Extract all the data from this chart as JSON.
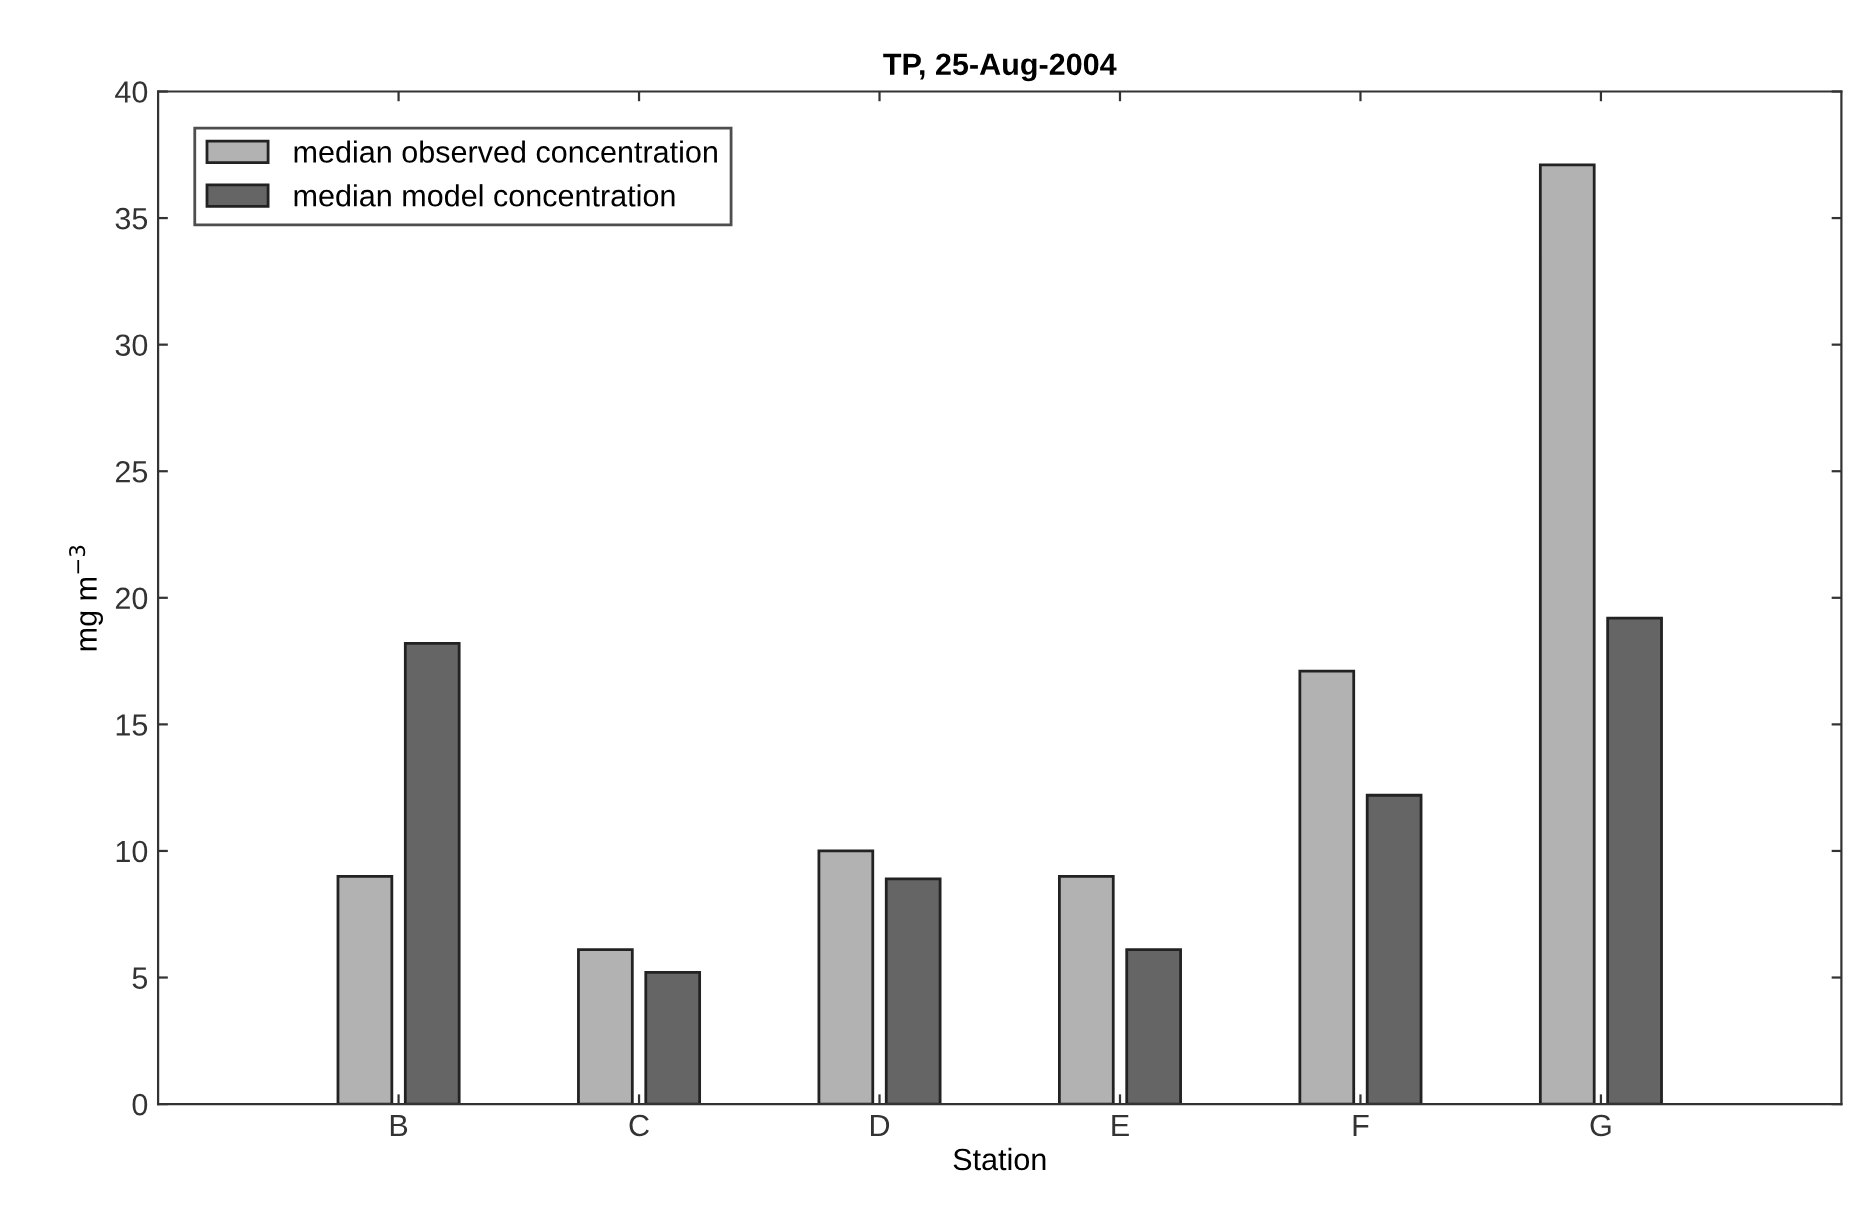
{
  "chart_data": {
    "type": "bar",
    "title": "TP, 25-Aug-2004",
    "xlabel": "Station",
    "ylabel": "mg m$^{−3}$",
    "categories": [
      "B",
      "C",
      "D",
      "E",
      "F",
      "G"
    ],
    "series": [
      {
        "name": "median observed concentration",
        "color": "#b2b2b2",
        "values": [
          9,
          6.1,
          10,
          9,
          17.1,
          37.1
        ]
      },
      {
        "name": "median model concentration",
        "color": "#656565",
        "values": [
          18.2,
          5.2,
          8.9,
          6.1,
          12.2,
          19.2
        ]
      }
    ],
    "ylim": [
      0,
      40
    ],
    "yticks": [
      0,
      5,
      10,
      15,
      20,
      25,
      30,
      35,
      40
    ],
    "grid": false,
    "legend": "top left"
  }
}
